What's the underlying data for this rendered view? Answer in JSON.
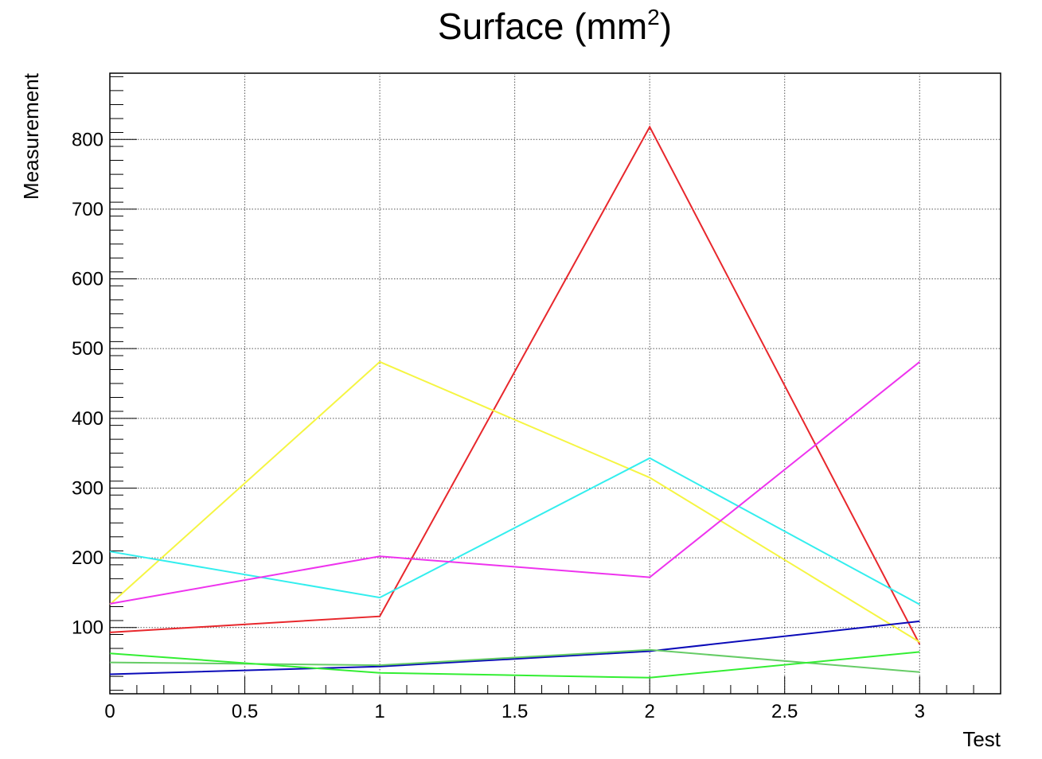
{
  "chart_data": {
    "type": "line",
    "title_main": "Surface (mm",
    "title_sup": "2",
    "title_end": ")",
    "xlabel": "Test",
    "ylabel": "Measurement",
    "xlim": [
      0,
      3.3
    ],
    "ylim": [
      5,
      895
    ],
    "grid": true,
    "x": [
      0,
      1,
      2,
      3
    ],
    "x_ticks": [
      "0",
      "0.5",
      "1",
      "1.5",
      "2",
      "2.5",
      "3"
    ],
    "y_ticks": [
      "100",
      "200",
      "300",
      "400",
      "500",
      "600",
      "700",
      "800"
    ],
    "series": [
      {
        "color": "#e8272c",
        "values": [
          93,
          116,
          818,
          76
        ]
      },
      {
        "color": "#f5f542",
        "values": [
          133,
          481,
          315,
          79
        ]
      },
      {
        "color": "#33eeee",
        "values": [
          209,
          143,
          343,
          133
        ]
      },
      {
        "color": "#ee33ee",
        "values": [
          134,
          202,
          172,
          481
        ]
      },
      {
        "color": "#0a0ab8",
        "values": [
          33,
          44,
          66,
          109
        ]
      },
      {
        "color": "#66cc66",
        "values": [
          50,
          46,
          68,
          36
        ]
      },
      {
        "color": "#33ee33",
        "values": [
          63,
          35,
          28,
          65
        ]
      }
    ]
  }
}
